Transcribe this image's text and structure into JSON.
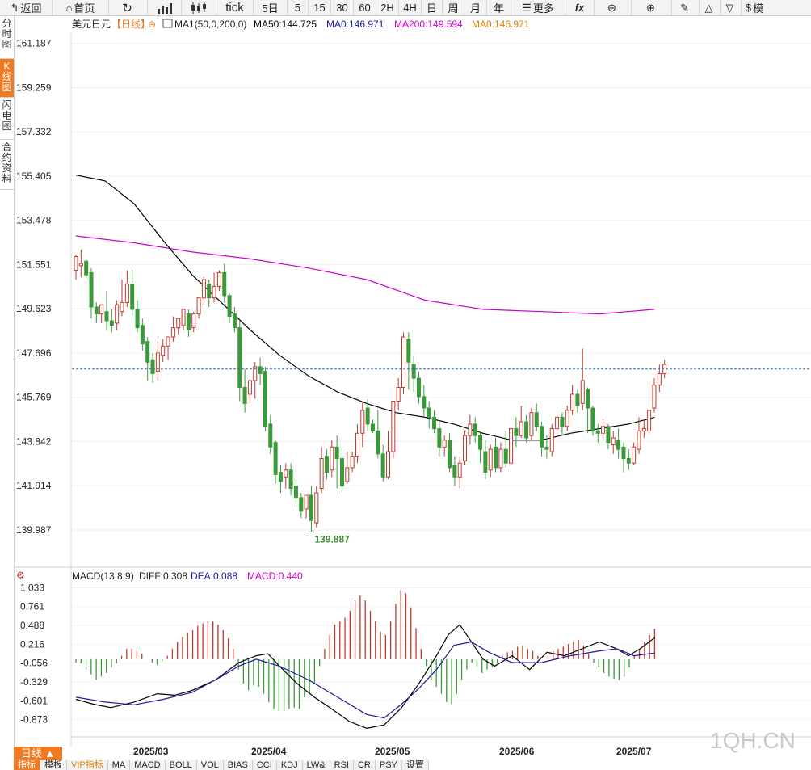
{
  "toolbar": {
    "back": "返回",
    "home": "首页",
    "tick": "tick",
    "periods": [
      "5日",
      "5",
      "15",
      "30",
      "60",
      "2H",
      "4H",
      "日",
      "周",
      "月",
      "年"
    ],
    "more": "更多",
    "fx": "fx",
    "model": "模"
  },
  "sidebar": {
    "items": [
      "分时图",
      "K线图",
      "闪电图",
      "合约资料"
    ]
  },
  "main_legend": {
    "symbol": "美元日元",
    "period": "【日线】",
    "ma_group": "MA1(50,0,200,0)",
    "ma50": "MA50:144.725",
    "ma0": "MA0:146.971",
    "ma200": "MA200:149.594",
    "ma0b": "MA0:146.971",
    "colors": {
      "ma50": "#000000",
      "ma0": "#1a1aa0",
      "ma200": "#cc00cc",
      "ma0b": "#e08000"
    }
  },
  "macd_legend": {
    "name": "MACD(13,8,9)",
    "diff": "DIFF:0.308",
    "dea": "DEA:0.088",
    "macd": "MACD:0.440"
  },
  "y_axis": [
    "161.187",
    "159.259",
    "157.332",
    "155.405",
    "153.478",
    "151.551",
    "149.623",
    "147.696",
    "145.769",
    "143.842",
    "141.914",
    "139.987"
  ],
  "macd_axis": [
    "1.033",
    "0.761",
    "0.488",
    "0.216",
    "-0.056",
    "-0.329",
    "-0.601",
    "-0.873"
  ],
  "x_axis": [
    "2025/03",
    "2025/04",
    "2025/05",
    "2025/06",
    "2025/07"
  ],
  "low_label": "139.887",
  "bottom": {
    "rate_button": "日线 ▲",
    "tabs": [
      "指标",
      "模板",
      "VIP指标",
      "MA",
      "MACD",
      "BOLL",
      "VOL",
      "BIAS",
      "CCI",
      "KDJ",
      "LW&",
      "RSI",
      "CR",
      "PSY",
      "设置"
    ]
  },
  "watermark": "1QH.CN",
  "chart_data": {
    "type": "candlestick",
    "symbol": "USDJPY",
    "period": "daily",
    "ylim": [
      139.0,
      161.6
    ],
    "last_price": 147.0,
    "candles": [
      [
        151.3,
        152.0,
        151.9,
        150.9
      ],
      [
        151.5,
        152.2,
        151.6,
        151.0
      ],
      [
        151.7,
        151.8,
        151.1,
        150.9
      ],
      [
        151.2,
        151.4,
        149.7,
        149.2
      ],
      [
        149.7,
        149.9,
        149.4,
        149.0
      ],
      [
        149.4,
        149.7,
        149.8,
        149.0
      ],
      [
        149.5,
        150.4,
        149.1,
        148.7
      ],
      [
        149.1,
        149.6,
        148.9,
        148.6
      ],
      [
        149.0,
        150.0,
        149.8,
        148.7
      ],
      [
        149.5,
        150.9,
        149.9,
        149.3
      ],
      [
        149.9,
        151.3,
        150.7,
        149.7
      ],
      [
        150.7,
        151.3,
        149.6,
        149.3
      ],
      [
        149.6,
        150.0,
        148.8,
        148.6
      ],
      [
        148.9,
        149.2,
        148.1,
        147.8
      ],
      [
        148.2,
        148.4,
        147.3,
        146.5
      ],
      [
        147.4,
        147.7,
        146.8,
        146.4
      ],
      [
        146.9,
        148.2,
        147.7,
        146.5
      ],
      [
        147.6,
        148.3,
        148.0,
        147.3
      ],
      [
        148.0,
        148.4,
        148.4,
        147.4
      ],
      [
        148.4,
        149.3,
        148.8,
        148.2
      ],
      [
        148.8,
        149.1,
        149.2,
        148.5
      ],
      [
        148.9,
        149.6,
        149.6,
        148.7
      ],
      [
        149.4,
        149.6,
        148.7,
        148.4
      ],
      [
        148.8,
        149.5,
        149.4,
        148.6
      ],
      [
        149.4,
        150.1,
        150.1,
        149.2
      ],
      [
        150.1,
        151.0,
        150.9,
        149.8
      ],
      [
        150.7,
        150.9,
        150.1,
        149.7
      ],
      [
        150.1,
        151.2,
        150.6,
        149.9
      ],
      [
        150.6,
        151.3,
        151.2,
        150.4
      ],
      [
        151.2,
        151.6,
        150.2,
        149.9
      ],
      [
        150.2,
        150.3,
        149.3,
        149.0
      ],
      [
        149.4,
        149.7,
        148.8,
        148.6
      ],
      [
        148.8,
        149.1,
        146.2,
        145.6
      ],
      [
        146.2,
        147.0,
        145.5,
        145.1
      ],
      [
        145.9,
        146.6,
        146.5,
        145.5
      ],
      [
        146.5,
        147.3,
        147.1,
        145.7
      ],
      [
        147.1,
        147.5,
        146.8,
        146.3
      ],
      [
        146.9,
        147.1,
        144.5,
        144.3
      ],
      [
        144.6,
        145.0,
        143.6,
        143.3
      ],
      [
        143.8,
        143.9,
        142.4,
        142.0
      ],
      [
        142.5,
        142.8,
        142.1,
        141.6
      ],
      [
        142.3,
        142.9,
        142.6,
        141.8
      ],
      [
        142.6,
        142.9,
        141.8,
        141.5
      ],
      [
        141.9,
        142.2,
        141.4,
        141.0
      ],
      [
        141.4,
        141.6,
        140.8,
        140.5
      ],
      [
        140.9,
        141.2,
        141.5,
        140.5
      ],
      [
        141.5,
        141.9,
        140.4,
        139.9
      ],
      [
        140.3,
        141.9,
        141.6,
        140.1
      ],
      [
        141.8,
        143.6,
        143.1,
        141.6
      ],
      [
        143.2,
        143.5,
        142.5,
        142.2
      ],
      [
        142.6,
        143.9,
        143.6,
        142.3
      ],
      [
        143.6,
        144.1,
        143.1,
        141.8
      ],
      [
        143.1,
        143.6,
        141.9,
        141.6
      ],
      [
        142.1,
        143.4,
        142.7,
        142.0
      ],
      [
        142.7,
        143.4,
        143.2,
        142.5
      ],
      [
        143.2,
        144.6,
        144.2,
        142.9
      ],
      [
        144.2,
        145.6,
        145.2,
        143.6
      ],
      [
        145.3,
        145.7,
        144.6,
        144.3
      ],
      [
        144.6,
        144.8,
        144.3,
        144.2
      ],
      [
        144.3,
        145.2,
        143.3,
        143.1
      ],
      [
        143.3,
        143.7,
        142.3,
        142.1
      ],
      [
        142.3,
        144.3,
        143.4,
        142.2
      ],
      [
        143.4,
        145.6,
        145.6,
        143.1
      ],
      [
        145.6,
        146.6,
        146.2,
        145.2
      ],
      [
        146.2,
        148.6,
        148.4,
        145.9
      ],
      [
        148.3,
        148.6,
        147.3,
        146.1
      ],
      [
        147.2,
        147.6,
        146.6,
        146.0
      ],
      [
        146.6,
        146.9,
        145.8,
        145.5
      ],
      [
        145.8,
        146.3,
        145.3,
        144.9
      ],
      [
        145.3,
        145.6,
        144.9,
        144.4
      ],
      [
        144.9,
        145.2,
        144.4,
        144.2
      ],
      [
        144.4,
        144.7,
        143.6,
        143.2
      ],
      [
        143.6,
        144.1,
        143.9,
        143.2
      ],
      [
        143.9,
        144.2,
        142.7,
        142.5
      ],
      [
        142.8,
        143.2,
        142.3,
        141.9
      ],
      [
        142.3,
        143.2,
        142.9,
        141.8
      ],
      [
        143.0,
        144.3,
        144.1,
        142.8
      ],
      [
        144.1,
        145.0,
        144.6,
        143.7
      ],
      [
        144.6,
        144.9,
        144.1,
        143.8
      ],
      [
        144.1,
        144.3,
        143.5,
        142.9
      ],
      [
        143.4,
        143.9,
        142.5,
        142.2
      ],
      [
        142.6,
        143.7,
        143.5,
        142.3
      ],
      [
        143.6,
        144.0,
        142.7,
        142.5
      ],
      [
        142.7,
        143.8,
        143.5,
        142.5
      ],
      [
        143.5,
        144.3,
        142.9,
        142.7
      ],
      [
        142.9,
        144.4,
        144.4,
        142.8
      ],
      [
        144.4,
        144.9,
        144.1,
        143.6
      ],
      [
        144.1,
        145.4,
        144.7,
        144.0
      ],
      [
        144.7,
        145.0,
        144.0,
        143.8
      ],
      [
        144.1,
        145.3,
        145.1,
        143.9
      ],
      [
        145.1,
        145.5,
        144.5,
        144.3
      ],
      [
        144.5,
        144.7,
        143.6,
        143.2
      ],
      [
        143.6,
        144.1,
        143.5,
        143.1
      ],
      [
        143.4,
        144.6,
        144.4,
        143.2
      ],
      [
        144.4,
        145.0,
        144.9,
        144.2
      ],
      [
        144.9,
        145.1,
        144.5,
        144.1
      ],
      [
        144.5,
        145.4,
        145.2,
        144.3
      ],
      [
        145.2,
        146.3,
        145.9,
        145.0
      ],
      [
        145.9,
        146.1,
        145.4,
        145.1
      ],
      [
        145.5,
        147.9,
        146.5,
        145.2
      ],
      [
        146.1,
        146.2,
        145.3,
        144.2
      ],
      [
        145.3,
        145.4,
        144.3,
        144.1
      ],
      [
        144.3,
        144.6,
        144.2,
        143.8
      ],
      [
        144.2,
        144.8,
        144.5,
        143.9
      ],
      [
        144.5,
        144.6,
        143.8,
        143.5
      ],
      [
        143.7,
        144.3,
        144.0,
        143.3
      ],
      [
        143.9,
        144.4,
        143.5,
        143.1
      ],
      [
        143.6,
        143.8,
        143.1,
        142.5
      ],
      [
        143.1,
        143.5,
        142.9,
        142.6
      ],
      [
        142.9,
        143.8,
        143.6,
        142.8
      ],
      [
        143.5,
        144.9,
        144.3,
        143.3
      ],
      [
        144.3,
        144.8,
        144.4,
        144.0
      ],
      [
        144.3,
        145.1,
        145.2,
        144.2
      ],
      [
        145.3,
        146.6,
        146.3,
        145.1
      ],
      [
        146.3,
        147.2,
        146.8,
        146.0
      ],
      [
        146.8,
        147.4,
        147.2,
        146.6
      ]
    ],
    "ma50": [
      [
        0,
        155.45
      ],
      [
        10,
        155.2
      ],
      [
        20,
        154.2
      ],
      [
        30,
        152.6
      ],
      [
        40,
        151.1
      ],
      [
        50,
        149.9
      ],
      [
        60,
        148.7
      ],
      [
        70,
        147.6
      ],
      [
        80,
        146.7
      ],
      [
        90,
        146.0
      ],
      [
        100,
        145.5
      ],
      [
        110,
        145.1
      ],
      [
        120,
        144.9
      ],
      [
        130,
        144.6
      ],
      [
        140,
        144.2
      ],
      [
        150,
        143.9
      ],
      [
        160,
        143.9
      ],
      [
        170,
        144.2
      ],
      [
        180,
        144.4
      ],
      [
        190,
        144.6
      ],
      [
        199,
        144.9
      ]
    ],
    "ma200": [
      [
        0,
        152.8
      ],
      [
        20,
        152.5
      ],
      [
        40,
        152.1
      ],
      [
        60,
        151.8
      ],
      [
        80,
        151.4
      ],
      [
        100,
        150.9
      ],
      [
        120,
        150.0
      ],
      [
        140,
        149.6
      ],
      [
        160,
        149.5
      ],
      [
        180,
        149.4
      ],
      [
        199,
        149.6
      ]
    ],
    "macd": {
      "ylim": [
        -1.1,
        1.12
      ],
      "hist": [
        -0.05,
        -0.06,
        -0.15,
        -0.22,
        -0.3,
        -0.25,
        -0.2,
        -0.12,
        -0.06,
        0.05,
        0.15,
        0.15,
        0.12,
        0.08,
        0.0,
        -0.05,
        -0.08,
        -0.03,
        0.05,
        0.15,
        0.25,
        0.32,
        0.38,
        0.42,
        0.48,
        0.52,
        0.55,
        0.55,
        0.5,
        0.42,
        0.3,
        0.15,
        -0.15,
        -0.35,
        -0.45,
        -0.38,
        -0.4,
        -0.5,
        -0.62,
        -0.72,
        -0.75,
        -0.75,
        -0.72,
        -0.7,
        -0.72,
        -0.55,
        -0.5,
        -0.35,
        -0.1,
        0.15,
        0.35,
        0.5,
        0.55,
        0.6,
        0.7,
        0.85,
        0.92,
        0.85,
        0.7,
        0.55,
        0.4,
        0.35,
        0.55,
        0.8,
        1.0,
        0.95,
        0.75,
        0.45,
        0.15,
        -0.1,
        -0.3,
        -0.4,
        -0.5,
        -0.62,
        -0.65,
        -0.5,
        -0.3,
        -0.15,
        -0.05,
        -0.1,
        -0.2,
        -0.15,
        -0.12,
        -0.05,
        0.05,
        0.1,
        0.12,
        0.18,
        0.2,
        0.15,
        0.12,
        0.05,
        0.0,
        0.05,
        0.12,
        0.15,
        0.18,
        0.22,
        0.25,
        0.28,
        0.2,
        0.08,
        -0.05,
        -0.12,
        -0.2,
        -0.25,
        -0.28,
        -0.3,
        -0.25,
        -0.12,
        0.05,
        0.15,
        0.25,
        0.35,
        0.44
      ],
      "diff": [
        [
          0,
          -0.58
        ],
        [
          6,
          -0.65
        ],
        [
          12,
          -0.7
        ],
        [
          20,
          -0.62
        ],
        [
          28,
          -0.5
        ],
        [
          34,
          -0.52
        ],
        [
          40,
          -0.45
        ],
        [
          48,
          -0.3
        ],
        [
          56,
          -0.05
        ],
        [
          62,
          0.05
        ],
        [
          66,
          0.08
        ],
        [
          70,
          -0.1
        ],
        [
          76,
          -0.35
        ],
        [
          82,
          -0.55
        ],
        [
          88,
          -0.72
        ],
        [
          94,
          -0.9
        ],
        [
          100,
          -1.0
        ],
        [
          106,
          -0.95
        ],
        [
          112,
          -0.7
        ],
        [
          118,
          -0.35
        ],
        [
          124,
          0.05
        ],
        [
          128,
          0.35
        ],
        [
          132,
          0.5
        ],
        [
          136,
          0.25
        ],
        [
          140,
          0.0
        ],
        [
          144,
          -0.1
        ],
        [
          150,
          0.05
        ],
        [
          156,
          -0.15
        ],
        [
          162,
          0.1
        ],
        [
          168,
          0.05
        ],
        [
          174,
          0.15
        ],
        [
          180,
          0.25
        ],
        [
          186,
          0.15
        ],
        [
          190,
          0.05
        ],
        [
          194,
          0.15
        ],
        [
          199,
          0.31
        ]
      ],
      "dea": [
        [
          0,
          -0.55
        ],
        [
          10,
          -0.62
        ],
        [
          20,
          -0.66
        ],
        [
          30,
          -0.58
        ],
        [
          40,
          -0.48
        ],
        [
          50,
          -0.25
        ],
        [
          56,
          -0.1
        ],
        [
          62,
          0.0
        ],
        [
          70,
          -0.1
        ],
        [
          80,
          -0.3
        ],
        [
          90,
          -0.55
        ],
        [
          100,
          -0.8
        ],
        [
          106,
          -0.85
        ],
        [
          112,
          -0.65
        ],
        [
          118,
          -0.42
        ],
        [
          124,
          -0.15
        ],
        [
          130,
          0.2
        ],
        [
          136,
          0.25
        ],
        [
          142,
          0.1
        ],
        [
          150,
          -0.05
        ],
        [
          160,
          -0.05
        ],
        [
          170,
          0.05
        ],
        [
          180,
          0.12
        ],
        [
          186,
          0.15
        ],
        [
          192,
          0.05
        ],
        [
          199,
          0.09
        ]
      ]
    }
  }
}
